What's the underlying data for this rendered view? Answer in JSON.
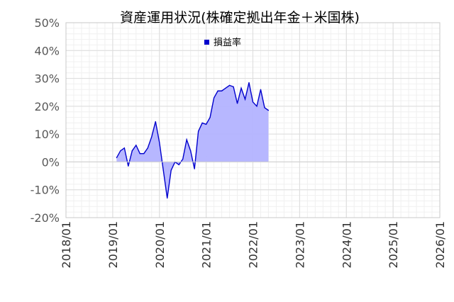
{
  "chart_data": {
    "type": "area",
    "title": "資産運用状況(株確定拠出年金＋米国株)",
    "xlabel": "",
    "ylabel": "",
    "x_ticks": [
      "2018/01",
      "2019/01",
      "2020/01",
      "2021/01",
      "2022/01",
      "2023/01",
      "2024/01",
      "2025/01",
      "2026/01"
    ],
    "y_ticks": [
      "-20%",
      "-10%",
      "0%",
      "10%",
      "20%",
      "30%",
      "40%",
      "50%"
    ],
    "xlim": [
      "2018/01",
      "2026/01"
    ],
    "ylim": [
      -20,
      50
    ],
    "grid": true,
    "legend_position": "top",
    "colors": {
      "line": "#0000cc",
      "fill": "#b3b3ff",
      "legend_marker": "#0000cc"
    },
    "series": [
      {
        "name": "損益率",
        "x": [
          "2019/02",
          "2019/03",
          "2019/04",
          "2019/05",
          "2019/06",
          "2019/07",
          "2019/08",
          "2019/09",
          "2019/10",
          "2019/11",
          "2019/12",
          "2020/01",
          "2020/02",
          "2020/03",
          "2020/04",
          "2020/05",
          "2020/06",
          "2020/07",
          "2020/08",
          "2020/09",
          "2020/10",
          "2020/11",
          "2020/12",
          "2021/01",
          "2021/02",
          "2021/03",
          "2021/04",
          "2021/05",
          "2021/06",
          "2021/07",
          "2021/08",
          "2021/09",
          "2021/10",
          "2021/11",
          "2021/12",
          "2022/01",
          "2022/02",
          "2022/03",
          "2022/04",
          "2022/05"
        ],
        "values": [
          1.5,
          4.0,
          5.0,
          -1.5,
          4.0,
          6.0,
          3.0,
          3.0,
          5.0,
          9.0,
          14.5,
          7.0,
          -3.0,
          -13.0,
          -3.0,
          0.0,
          -1.0,
          1.0,
          8.0,
          4.0,
          -2.5,
          11.0,
          14.0,
          13.5,
          16.0,
          23.0,
          25.5,
          25.5,
          26.5,
          27.5,
          27.0,
          21.0,
          26.5,
          22.5,
          28.5,
          21.5,
          20.0,
          26.0,
          19.5,
          18.5
        ]
      }
    ]
  }
}
